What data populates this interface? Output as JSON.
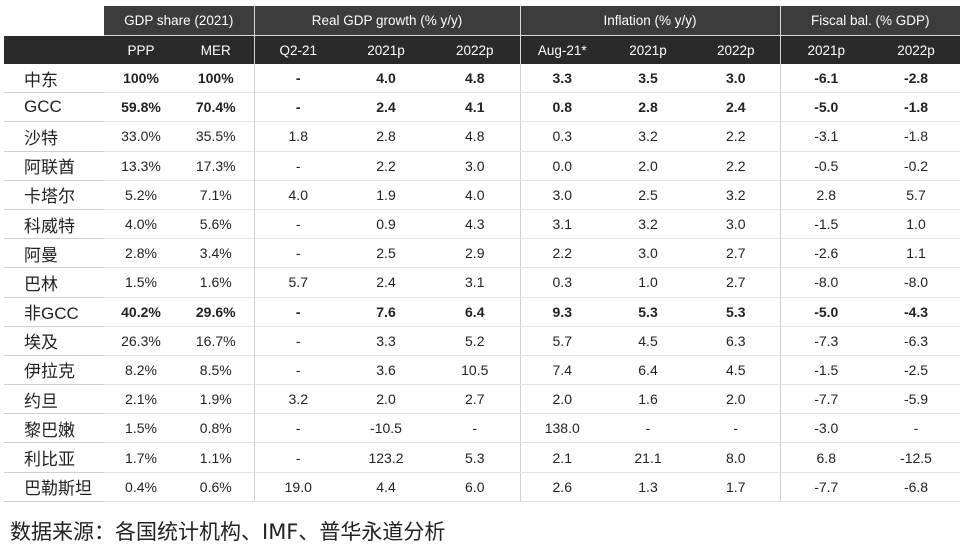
{
  "header": {
    "groups": [
      "GDP share (2021)",
      "Real GDP growth (% y/y)",
      "Inflation (% y/y)",
      "Fiscal bal. (% GDP)"
    ],
    "subheaders": [
      "PPP",
      "MER",
      "Q2-21",
      "2021p",
      "2022p",
      "Aug-21*",
      "2021p",
      "2022p",
      "2021p",
      "2022p"
    ]
  },
  "rows": [
    {
      "label": "中东",
      "bold": true,
      "values": [
        "100%",
        "100%",
        "-",
        "4.0",
        "4.8",
        "3.3",
        "3.5",
        "3.0",
        "-6.1",
        "-2.8"
      ]
    },
    {
      "label": "GCC",
      "bold": true,
      "values": [
        "59.8%",
        "70.4%",
        "-",
        "2.4",
        "4.1",
        "0.8",
        "2.8",
        "2.4",
        "-5.0",
        "-1.8"
      ]
    },
    {
      "label": "沙特",
      "bold": false,
      "values": [
        "33.0%",
        "35.5%",
        "1.8",
        "2.8",
        "4.8",
        "0.3",
        "3.2",
        "2.2",
        "-3.1",
        "-1.8"
      ]
    },
    {
      "label": "阿联酋",
      "bold": false,
      "values": [
        "13.3%",
        "17.3%",
        "-",
        "2.2",
        "3.0",
        "0.0",
        "2.0",
        "2.2",
        "-0.5",
        "-0.2"
      ]
    },
    {
      "label": "卡塔尔",
      "bold": false,
      "values": [
        "5.2%",
        "7.1%",
        "4.0",
        "1.9",
        "4.0",
        "3.0",
        "2.5",
        "3.2",
        "2.8",
        "5.7"
      ]
    },
    {
      "label": "科威特",
      "bold": false,
      "values": [
        "4.0%",
        "5.6%",
        "-",
        "0.9",
        "4.3",
        "3.1",
        "3.2",
        "3.0",
        "-1.5",
        "1.0"
      ]
    },
    {
      "label": "阿曼",
      "bold": false,
      "values": [
        "2.8%",
        "3.4%",
        "-",
        "2.5",
        "2.9",
        "2.2",
        "3.0",
        "2.7",
        "-2.6",
        "1.1"
      ]
    },
    {
      "label": "巴林",
      "bold": false,
      "values": [
        "1.5%",
        "1.6%",
        "5.7",
        "2.4",
        "3.1",
        "0.3",
        "1.0",
        "2.7",
        "-8.0",
        "-8.0"
      ]
    },
    {
      "label": "非GCC",
      "bold": true,
      "values": [
        "40.2%",
        "29.6%",
        "-",
        "7.6",
        "6.4",
        "9.3",
        "5.3",
        "5.3",
        "-5.0",
        "-4.3"
      ]
    },
    {
      "label": "埃及",
      "bold": false,
      "values": [
        "26.3%",
        "16.7%",
        "-",
        "3.3",
        "5.2",
        "5.7",
        "4.5",
        "6.3",
        "-7.3",
        "-6.3"
      ]
    },
    {
      "label": "伊拉克",
      "bold": false,
      "values": [
        "8.2%",
        "8.5%",
        "-",
        "3.6",
        "10.5",
        "7.4",
        "6.4",
        "4.5",
        "-1.5",
        "-2.5"
      ]
    },
    {
      "label": "约旦",
      "bold": false,
      "values": [
        "2.1%",
        "1.9%",
        "3.2",
        "2.0",
        "2.7",
        "2.0",
        "1.6",
        "2.0",
        "-7.7",
        "-5.9"
      ]
    },
    {
      "label": "黎巴嫩",
      "bold": false,
      "values": [
        "1.5%",
        "0.8%",
        "-",
        "-10.5",
        "-",
        "138.0",
        "-",
        "-",
        "-3.0",
        "-"
      ]
    },
    {
      "label": "利比亚",
      "bold": false,
      "values": [
        "1.7%",
        "1.1%",
        "-",
        "123.2",
        "5.3",
        "2.1",
        "21.1",
        "8.0",
        "6.8",
        "-12.5"
      ]
    },
    {
      "label": "巴勒斯坦",
      "bold": false,
      "values": [
        "0.4%",
        "0.6%",
        "19.0",
        "4.4",
        "6.0",
        "2.6",
        "1.3",
        "1.7",
        "-7.7",
        "-6.8"
      ]
    }
  ],
  "footer": {
    "source": "数据来源：各国统计机构、IMF、普华永道分析"
  }
}
